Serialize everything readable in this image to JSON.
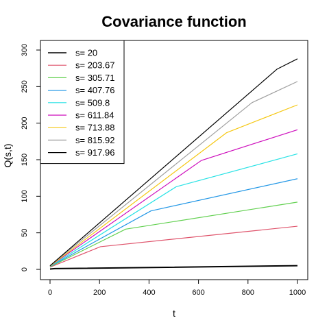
{
  "chart_data": {
    "type": "line",
    "title": "Covariance function",
    "xlabel": "t",
    "ylabel": "Q(s,t)",
    "xlim": [
      0,
      1000
    ],
    "ylim": [
      0,
      300
    ],
    "xticks": [
      0,
      200,
      400,
      600,
      800,
      1000
    ],
    "yticks": [
      0,
      50,
      100,
      150,
      200,
      250,
      300
    ],
    "legend_position": "top-left",
    "grid": false,
    "series": [
      {
        "name": "s= 20",
        "color": "#000000",
        "s": 20,
        "points": [
          [
            0,
            0.5
          ],
          [
            20,
            1
          ],
          [
            1000,
            5
          ]
        ]
      },
      {
        "name": "s= 203.67",
        "color": "#DF536B",
        "s": 203.67,
        "points": [
          [
            0,
            3
          ],
          [
            203.67,
            31
          ],
          [
            1000,
            59
          ]
        ]
      },
      {
        "name": "s= 305.71",
        "color": "#61D04F",
        "s": 305.71,
        "points": [
          [
            0,
            3.5
          ],
          [
            305.71,
            55
          ],
          [
            1000,
            92
          ]
        ]
      },
      {
        "name": "s= 407.76",
        "color": "#2297E6",
        "s": 407.76,
        "points": [
          [
            0,
            4
          ],
          [
            407.76,
            80
          ],
          [
            1000,
            124
          ]
        ]
      },
      {
        "name": "s= 509.8",
        "color": "#28E2E5",
        "s": 509.8,
        "points": [
          [
            0,
            4
          ],
          [
            509.8,
            113
          ],
          [
            1000,
            158
          ]
        ]
      },
      {
        "name": "s= 611.84",
        "color": "#CD0BBC",
        "s": 611.84,
        "points": [
          [
            0,
            4.5
          ],
          [
            611.84,
            149
          ],
          [
            1000,
            191
          ]
        ]
      },
      {
        "name": "s= 713.88",
        "color": "#F5C710",
        "s": 713.88,
        "points": [
          [
            0,
            4.5
          ],
          [
            713.88,
            187
          ],
          [
            1000,
            225
          ]
        ]
      },
      {
        "name": "s= 815.92",
        "color": "#9E9E9E",
        "s": 815.92,
        "points": [
          [
            0,
            5
          ],
          [
            815.92,
            228
          ],
          [
            1000,
            257
          ]
        ]
      },
      {
        "name": "s= 917.96",
        "color": "#000000",
        "s": 917.96,
        "points": [
          [
            0,
            5
          ],
          [
            917.96,
            274
          ],
          [
            1000,
            288
          ]
        ]
      }
    ]
  }
}
